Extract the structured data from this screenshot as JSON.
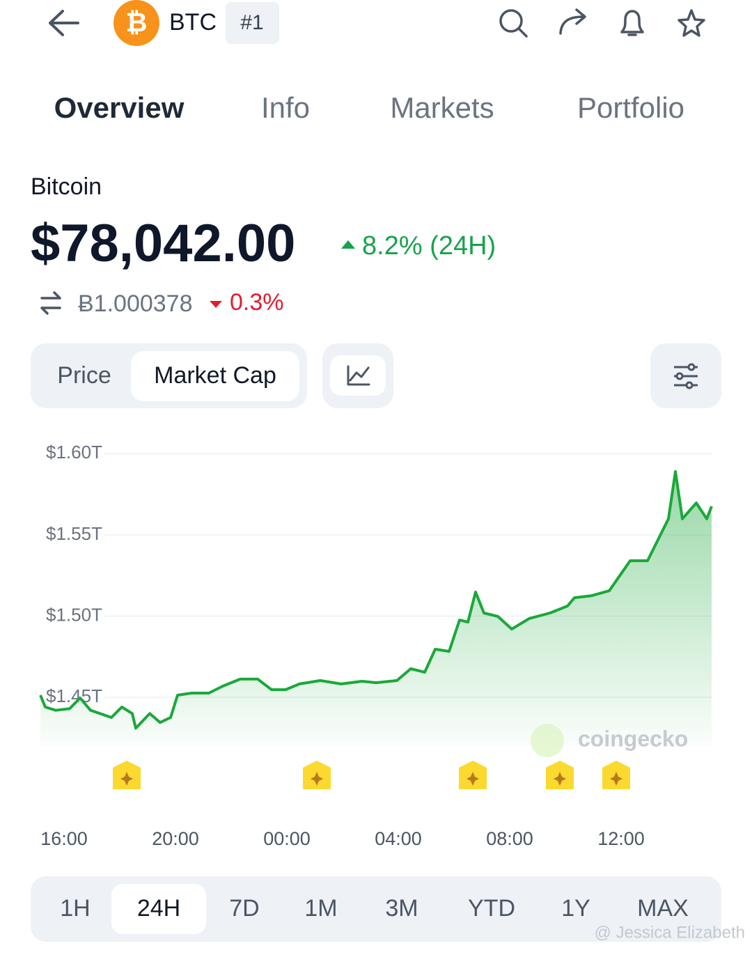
{
  "header": {
    "symbol": "BTC",
    "rank": "#1"
  },
  "tabs": [
    "Overview",
    "Info",
    "Markets",
    "Portfolio"
  ],
  "coin": {
    "name": "Bitcoin",
    "price": "$78,042.00",
    "change": "8.2% (24H)",
    "btc_price": "Ƀ1.000378",
    "btc_change": "0.3%"
  },
  "toggle": [
    "Price",
    "Market Cap"
  ],
  "chart_data": {
    "type": "line",
    "color": "#1aa83a",
    "grid": true,
    "watermark": "coingecko",
    "x": [
      -0.85,
      -0.675,
      -0.3,
      0.2,
      0.575,
      0.95,
      1.7,
      2.075,
      2.45,
      2.575,
      3.075,
      3.45,
      3.825,
      4.075,
      4.575,
      5.2,
      5.7,
      6.325,
      6.95,
      7.45,
      7.95,
      8.45,
      9.2,
      9.95,
      10.7,
      11.2,
      11.95,
      12.45,
      12.95,
      13.325,
      13.825,
      14.2,
      14.5,
      14.775,
      15.075,
      15.575,
      16.075,
      16.7,
      17.45,
      18.075,
      18.325,
      18.95,
      19.575,
      20.325,
      20.95,
      21.325,
      21.7,
      21.95,
      22.2,
      22.7,
      23.075,
      23.25
    ],
    "values": [
      1.4513,
      1.444,
      1.442,
      1.443,
      1.4496,
      1.442,
      1.4376,
      1.444,
      1.44,
      1.431,
      1.44,
      1.4345,
      1.4376,
      1.4513,
      1.4526,
      1.4526,
      1.4569,
      1.4612,
      1.4612,
      1.4547,
      1.4547,
      1.4582,
      1.4603,
      1.4582,
      1.4599,
      1.459,
      1.4603,
      1.4676,
      1.4654,
      1.4796,
      1.4783,
      1.4976,
      1.4963,
      1.5148,
      1.5019,
      1.4998,
      1.492,
      1.4985,
      1.5019,
      1.5062,
      1.5113,
      1.5126,
      1.5156,
      1.5341,
      1.5341,
      1.547,
      1.5599,
      1.589,
      1.5599,
      1.5697,
      1.5599,
      1.5676
    ],
    "xlim": [
      -0.85,
      23.25
    ],
    "ylim": [
      1.42,
      1.61
    ],
    "xticks": [
      {
        "value": 0,
        "label": "16:00"
      },
      {
        "value": 4,
        "label": "20:00"
      },
      {
        "value": 8,
        "label": "00:00"
      },
      {
        "value": 12,
        "label": "04:00"
      },
      {
        "value": 16,
        "label": "08:00"
      },
      {
        "value": 20,
        "label": "12:00"
      }
    ],
    "yticks": [
      {
        "value": 1.6,
        "label": "$1.60T"
      },
      {
        "value": 1.55,
        "label": "$1.55T"
      },
      {
        "value": 1.5,
        "label": "$1.50T"
      },
      {
        "value": 1.45,
        "label": "$1.45T"
      }
    ]
  },
  "ranges": [
    "1H",
    "24H",
    "7D",
    "1M",
    "3M",
    "YTD",
    "1Y",
    "MAX"
  ],
  "credit": "@ Jessica Elizabeth"
}
